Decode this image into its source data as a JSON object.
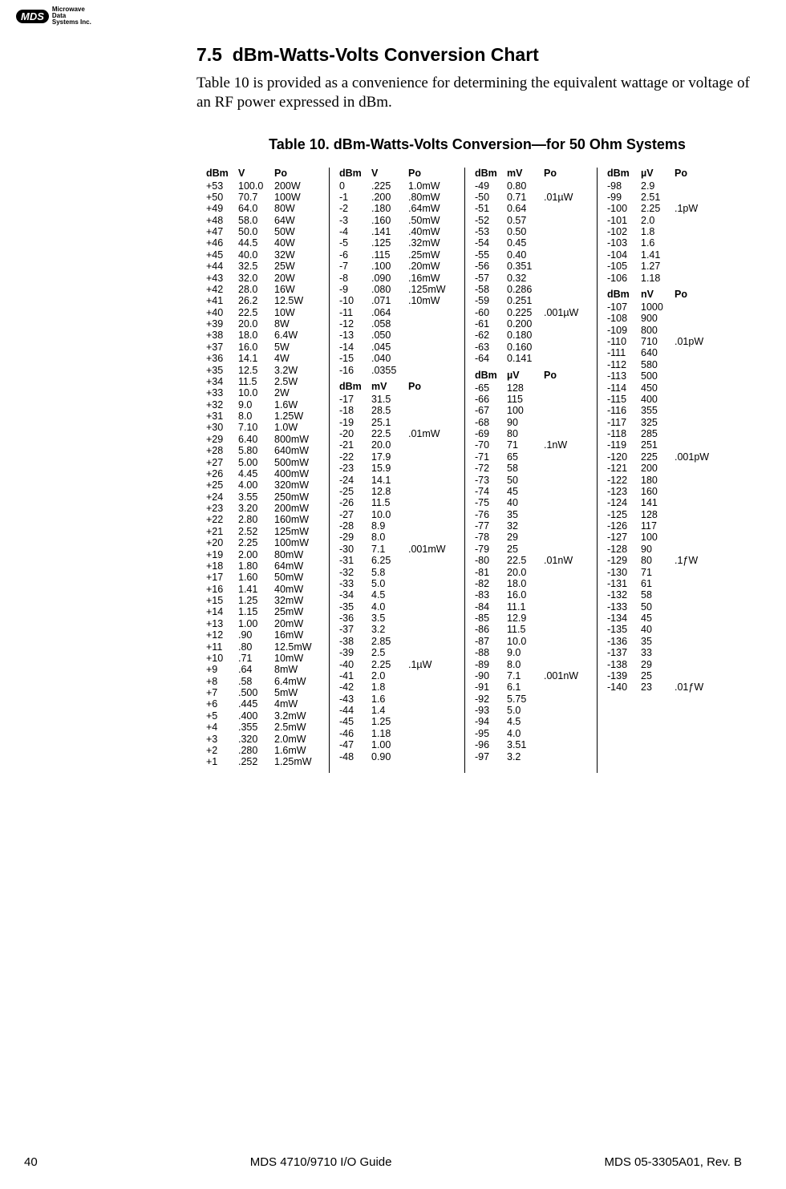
{
  "logo": {
    "abbrev": "MDS",
    "line1": "Microwave",
    "line2": "Data",
    "line3": "Systems Inc."
  },
  "section_num": "7.5",
  "section_title": "dBm-Watts-Volts Conversion Chart",
  "body_text": "Table 10 is provided as a convenience for determining the equivalent wattage or voltage of an RF power expressed in dBm.",
  "table_caption": "Table 10. dBm-Watts-Volts Conversion—for 50 Ohm Systems",
  "col1": {
    "hdr": [
      "dBm",
      "V",
      "Po"
    ],
    "rows": [
      [
        "+53",
        "100.0",
        "200W"
      ],
      [
        "+50",
        "70.7",
        "100W"
      ],
      [
        "+49",
        "64.0",
        "80W"
      ],
      [
        "+48",
        "58.0",
        "64W"
      ],
      [
        "+47",
        "50.0",
        "50W"
      ],
      [
        "+46",
        "44.5",
        "40W"
      ],
      [
        "+45",
        "40.0",
        "32W"
      ],
      [
        "+44",
        "32.5",
        "25W"
      ],
      [
        "+43",
        "32.0",
        "20W"
      ],
      [
        "+42",
        "28.0",
        "16W"
      ],
      [
        "+41",
        "26.2",
        "12.5W"
      ],
      [
        "+40",
        "22.5",
        "10W"
      ],
      [
        "+39",
        "20.0",
        "8W"
      ],
      [
        "+38",
        "18.0",
        "6.4W"
      ],
      [
        "+37",
        "16.0",
        "5W"
      ],
      [
        "+36",
        "14.1",
        "4W"
      ],
      [
        "+35",
        "12.5",
        "3.2W"
      ],
      [
        "+34",
        "11.5",
        "2.5W"
      ],
      [
        "+33",
        "10.0",
        "2W"
      ],
      [
        "+32",
        "9.0",
        "1.6W"
      ],
      [
        "+31",
        "8.0",
        "1.25W"
      ],
      [
        "+30",
        "7.10",
        "1.0W"
      ],
      [
        "+29",
        "6.40",
        "800mW"
      ],
      [
        "+28",
        "5.80",
        "640mW"
      ],
      [
        "+27",
        "5.00",
        "500mW"
      ],
      [
        "+26",
        "4.45",
        "400mW"
      ],
      [
        "+25",
        "4.00",
        "320mW"
      ],
      [
        "+24",
        "3.55",
        "250mW"
      ],
      [
        "+23",
        "3.20",
        "200mW"
      ],
      [
        "+22",
        "2.80",
        "160mW"
      ],
      [
        "+21",
        "2.52",
        "125mW"
      ],
      [
        "+20",
        "2.25",
        "100mW"
      ],
      [
        "+19",
        "2.00",
        "80mW"
      ],
      [
        "+18",
        "1.80",
        "64mW"
      ],
      [
        "+17",
        "1.60",
        "50mW"
      ],
      [
        "+16",
        "1.41",
        "40mW"
      ],
      [
        "+15",
        "1.25",
        "32mW"
      ],
      [
        "+14",
        "1.15",
        "25mW"
      ],
      [
        "+13",
        "1.00",
        "20mW"
      ],
      [
        "+12",
        ".90",
        "16mW"
      ],
      [
        "+11",
        ".80",
        "12.5mW"
      ],
      [
        "+10",
        ".71",
        "10mW"
      ],
      [
        "+9",
        ".64",
        "8mW"
      ],
      [
        "+8",
        ".58",
        "6.4mW"
      ],
      [
        "+7",
        ".500",
        "5mW"
      ],
      [
        "+6",
        ".445",
        "4mW"
      ],
      [
        "+5",
        ".400",
        "3.2mW"
      ],
      [
        "+4",
        ".355",
        "2.5mW"
      ],
      [
        "+3",
        ".320",
        "2.0mW"
      ],
      [
        "+2",
        ".280",
        "1.6mW"
      ],
      [
        "+1",
        ".252",
        "1.25mW"
      ]
    ]
  },
  "col2a": {
    "hdr": [
      "dBm",
      "V",
      "Po"
    ],
    "rows": [
      [
        "0",
        ".225",
        "1.0mW"
      ],
      [
        "-1",
        ".200",
        ".80mW"
      ],
      [
        "-2",
        ".180",
        ".64mW"
      ],
      [
        "-3",
        ".160",
        ".50mW"
      ],
      [
        "-4",
        ".141",
        ".40mW"
      ],
      [
        "-5",
        ".125",
        ".32mW"
      ],
      [
        "-6",
        ".115",
        ".25mW"
      ],
      [
        "-7",
        ".100",
        ".20mW"
      ],
      [
        "-8",
        ".090",
        ".16mW"
      ],
      [
        "-9",
        ".080",
        ".125mW"
      ],
      [
        "-10",
        ".071",
        ".10mW"
      ],
      [
        "-11",
        ".064",
        ""
      ],
      [
        "-12",
        ".058",
        ""
      ],
      [
        "-13",
        ".050",
        ""
      ],
      [
        "-14",
        ".045",
        ""
      ],
      [
        "-15",
        ".040",
        ""
      ],
      [
        "-16",
        ".0355",
        ""
      ]
    ]
  },
  "col2b": {
    "hdr": [
      "dBm",
      "mV",
      "Po"
    ],
    "rows": [
      [
        "-17",
        "31.5",
        ""
      ],
      [
        "-18",
        "28.5",
        ""
      ],
      [
        "-19",
        "25.1",
        ""
      ],
      [
        "-20",
        "22.5",
        ".01mW"
      ],
      [
        "-21",
        "20.0",
        ""
      ],
      [
        "-22",
        "17.9",
        ""
      ],
      [
        "-23",
        "15.9",
        ""
      ],
      [
        "-24",
        "14.1",
        ""
      ],
      [
        "-25",
        "12.8",
        ""
      ],
      [
        "-26",
        "11.5",
        ""
      ],
      [
        "-27",
        "10.0",
        ""
      ],
      [
        "-28",
        "8.9",
        ""
      ],
      [
        "-29",
        "8.0",
        ""
      ],
      [
        "-30",
        "7.1",
        ".001mW"
      ],
      [
        "-31",
        "6.25",
        ""
      ],
      [
        "-32",
        "5.8",
        ""
      ],
      [
        "-33",
        "5.0",
        ""
      ],
      [
        "-34",
        "4.5",
        ""
      ],
      [
        "-35",
        "4.0",
        ""
      ],
      [
        "-36",
        "3.5",
        ""
      ],
      [
        "-37",
        "3.2",
        ""
      ],
      [
        "-38",
        "2.85",
        ""
      ],
      [
        "-39",
        "2.5",
        ""
      ],
      [
        "-40",
        "2.25",
        ".1µW"
      ],
      [
        "-41",
        "2.0",
        ""
      ],
      [
        "-42",
        "1.8",
        ""
      ],
      [
        "-43",
        "1.6",
        ""
      ],
      [
        "-44",
        "1.4",
        ""
      ],
      [
        "-45",
        "1.25",
        ""
      ],
      [
        "-46",
        "1.18",
        ""
      ],
      [
        "-47",
        "1.00",
        ""
      ],
      [
        "-48",
        "0.90",
        ""
      ]
    ]
  },
  "col3a": {
    "hdr": [
      "dBm",
      "mV",
      "Po"
    ],
    "rows": [
      [
        "-49",
        "0.80",
        ""
      ],
      [
        "-50",
        "0.71",
        ".01µW"
      ],
      [
        "-51",
        "0.64",
        ""
      ],
      [
        "-52",
        "0.57",
        ""
      ],
      [
        "-53",
        "0.50",
        ""
      ],
      [
        "-54",
        "0.45",
        ""
      ],
      [
        "-55",
        "0.40",
        ""
      ],
      [
        "-56",
        "0.351",
        ""
      ],
      [
        "-57",
        "0.32",
        ""
      ],
      [
        "-58",
        "0.286",
        ""
      ],
      [
        "-59",
        "0.251",
        ""
      ],
      [
        "-60",
        "0.225",
        ".001µW"
      ],
      [
        "-61",
        "0.200",
        ""
      ],
      [
        "-62",
        "0.180",
        ""
      ],
      [
        "-63",
        "0.160",
        ""
      ],
      [
        "-64",
        "0.141",
        ""
      ]
    ]
  },
  "col3b": {
    "hdr": [
      "dBm",
      "µV",
      "Po"
    ],
    "rows": [
      [
        "-65",
        "128",
        ""
      ],
      [
        "-66",
        "115",
        ""
      ],
      [
        "-67",
        "100",
        ""
      ],
      [
        "-68",
        "90",
        ""
      ],
      [
        "-69",
        "80",
        ""
      ],
      [
        "-70",
        "71",
        ".1nW"
      ],
      [
        "-71",
        "65",
        ""
      ],
      [
        "-72",
        "58",
        ""
      ],
      [
        "-73",
        "50",
        ""
      ],
      [
        "-74",
        "45",
        ""
      ],
      [
        "-75",
        "40",
        ""
      ],
      [
        "-76",
        "35",
        ""
      ],
      [
        "-77",
        "32",
        ""
      ],
      [
        "-78",
        "29",
        ""
      ],
      [
        "-79",
        "25",
        ""
      ],
      [
        "-80",
        "22.5",
        ".01nW"
      ],
      [
        "-81",
        "20.0",
        ""
      ],
      [
        "-82",
        "18.0",
        ""
      ],
      [
        "-83",
        "16.0",
        ""
      ],
      [
        "-84",
        "11.1",
        ""
      ],
      [
        "-85",
        "12.9",
        ""
      ],
      [
        "-86",
        "11.5",
        ""
      ],
      [
        "-87",
        "10.0",
        ""
      ],
      [
        "-88",
        "9.0",
        ""
      ],
      [
        "-89",
        "8.0",
        ""
      ],
      [
        "-90",
        "7.1",
        ".001nW"
      ],
      [
        "-91",
        "6.1",
        ""
      ],
      [
        "-92",
        "5.75",
        ""
      ],
      [
        "-93",
        "5.0",
        ""
      ],
      [
        "-94",
        "4.5",
        ""
      ],
      [
        "-95",
        "4.0",
        ""
      ],
      [
        "-96",
        "3.51",
        ""
      ],
      [
        "-97",
        "3.2",
        ""
      ]
    ]
  },
  "col4a": {
    "hdr": [
      "dBm",
      "µV",
      "Po"
    ],
    "rows": [
      [
        "-98",
        "2.9",
        ""
      ],
      [
        "-99",
        "2.51",
        ""
      ],
      [
        "-100",
        "2.25",
        ".1pW"
      ],
      [
        "-101",
        "2.0",
        ""
      ],
      [
        "-102",
        "1.8",
        ""
      ],
      [
        "-103",
        "1.6",
        ""
      ],
      [
        "-104",
        "1.41",
        ""
      ],
      [
        "-105",
        "1.27",
        ""
      ],
      [
        "-106",
        "1.18",
        ""
      ]
    ]
  },
  "col4b": {
    "hdr": [
      "dBm",
      "nV",
      "Po"
    ],
    "rows": [
      [
        "-107",
        "1000",
        ""
      ],
      [
        "-108",
        "900",
        ""
      ],
      [
        "-109",
        "800",
        ""
      ],
      [
        "-110",
        "710",
        ".01pW"
      ],
      [
        "-111",
        "640",
        ""
      ],
      [
        "-112",
        "580",
        ""
      ],
      [
        "-113",
        "500",
        ""
      ],
      [
        "-114",
        "450",
        ""
      ],
      [
        "-115",
        "400",
        ""
      ],
      [
        "-116",
        "355",
        ""
      ],
      [
        "-117",
        "325",
        ""
      ],
      [
        "-118",
        "285",
        ""
      ],
      [
        "-119",
        "251",
        ""
      ],
      [
        "-120",
        "225",
        ".001pW"
      ],
      [
        "-121",
        "200",
        ""
      ],
      [
        "-122",
        "180",
        ""
      ],
      [
        "-123",
        "160",
        ""
      ],
      [
        "-124",
        "141",
        ""
      ],
      [
        "-125",
        "128",
        ""
      ],
      [
        "-126",
        "117",
        ""
      ],
      [
        "-127",
        "100",
        ""
      ],
      [
        "-128",
        "90",
        ""
      ],
      [
        "-129",
        "80",
        ".1ƒW"
      ],
      [
        "-130",
        "71",
        ""
      ],
      [
        "-131",
        "61",
        ""
      ],
      [
        "-132",
        "58",
        ""
      ],
      [
        "-133",
        "50",
        ""
      ],
      [
        "-134",
        "45",
        ""
      ],
      [
        "-135",
        "40",
        ""
      ],
      [
        "-136",
        "35",
        ""
      ],
      [
        "-137",
        "33",
        ""
      ],
      [
        "-138",
        "29",
        ""
      ],
      [
        "-139",
        "25",
        ""
      ],
      [
        "-140",
        "23",
        ".01ƒW"
      ]
    ]
  },
  "footer": {
    "page": "40",
    "center": "MDS 4710/9710 I/O Guide",
    "right": "MDS 05-3305A01, Rev. B"
  }
}
